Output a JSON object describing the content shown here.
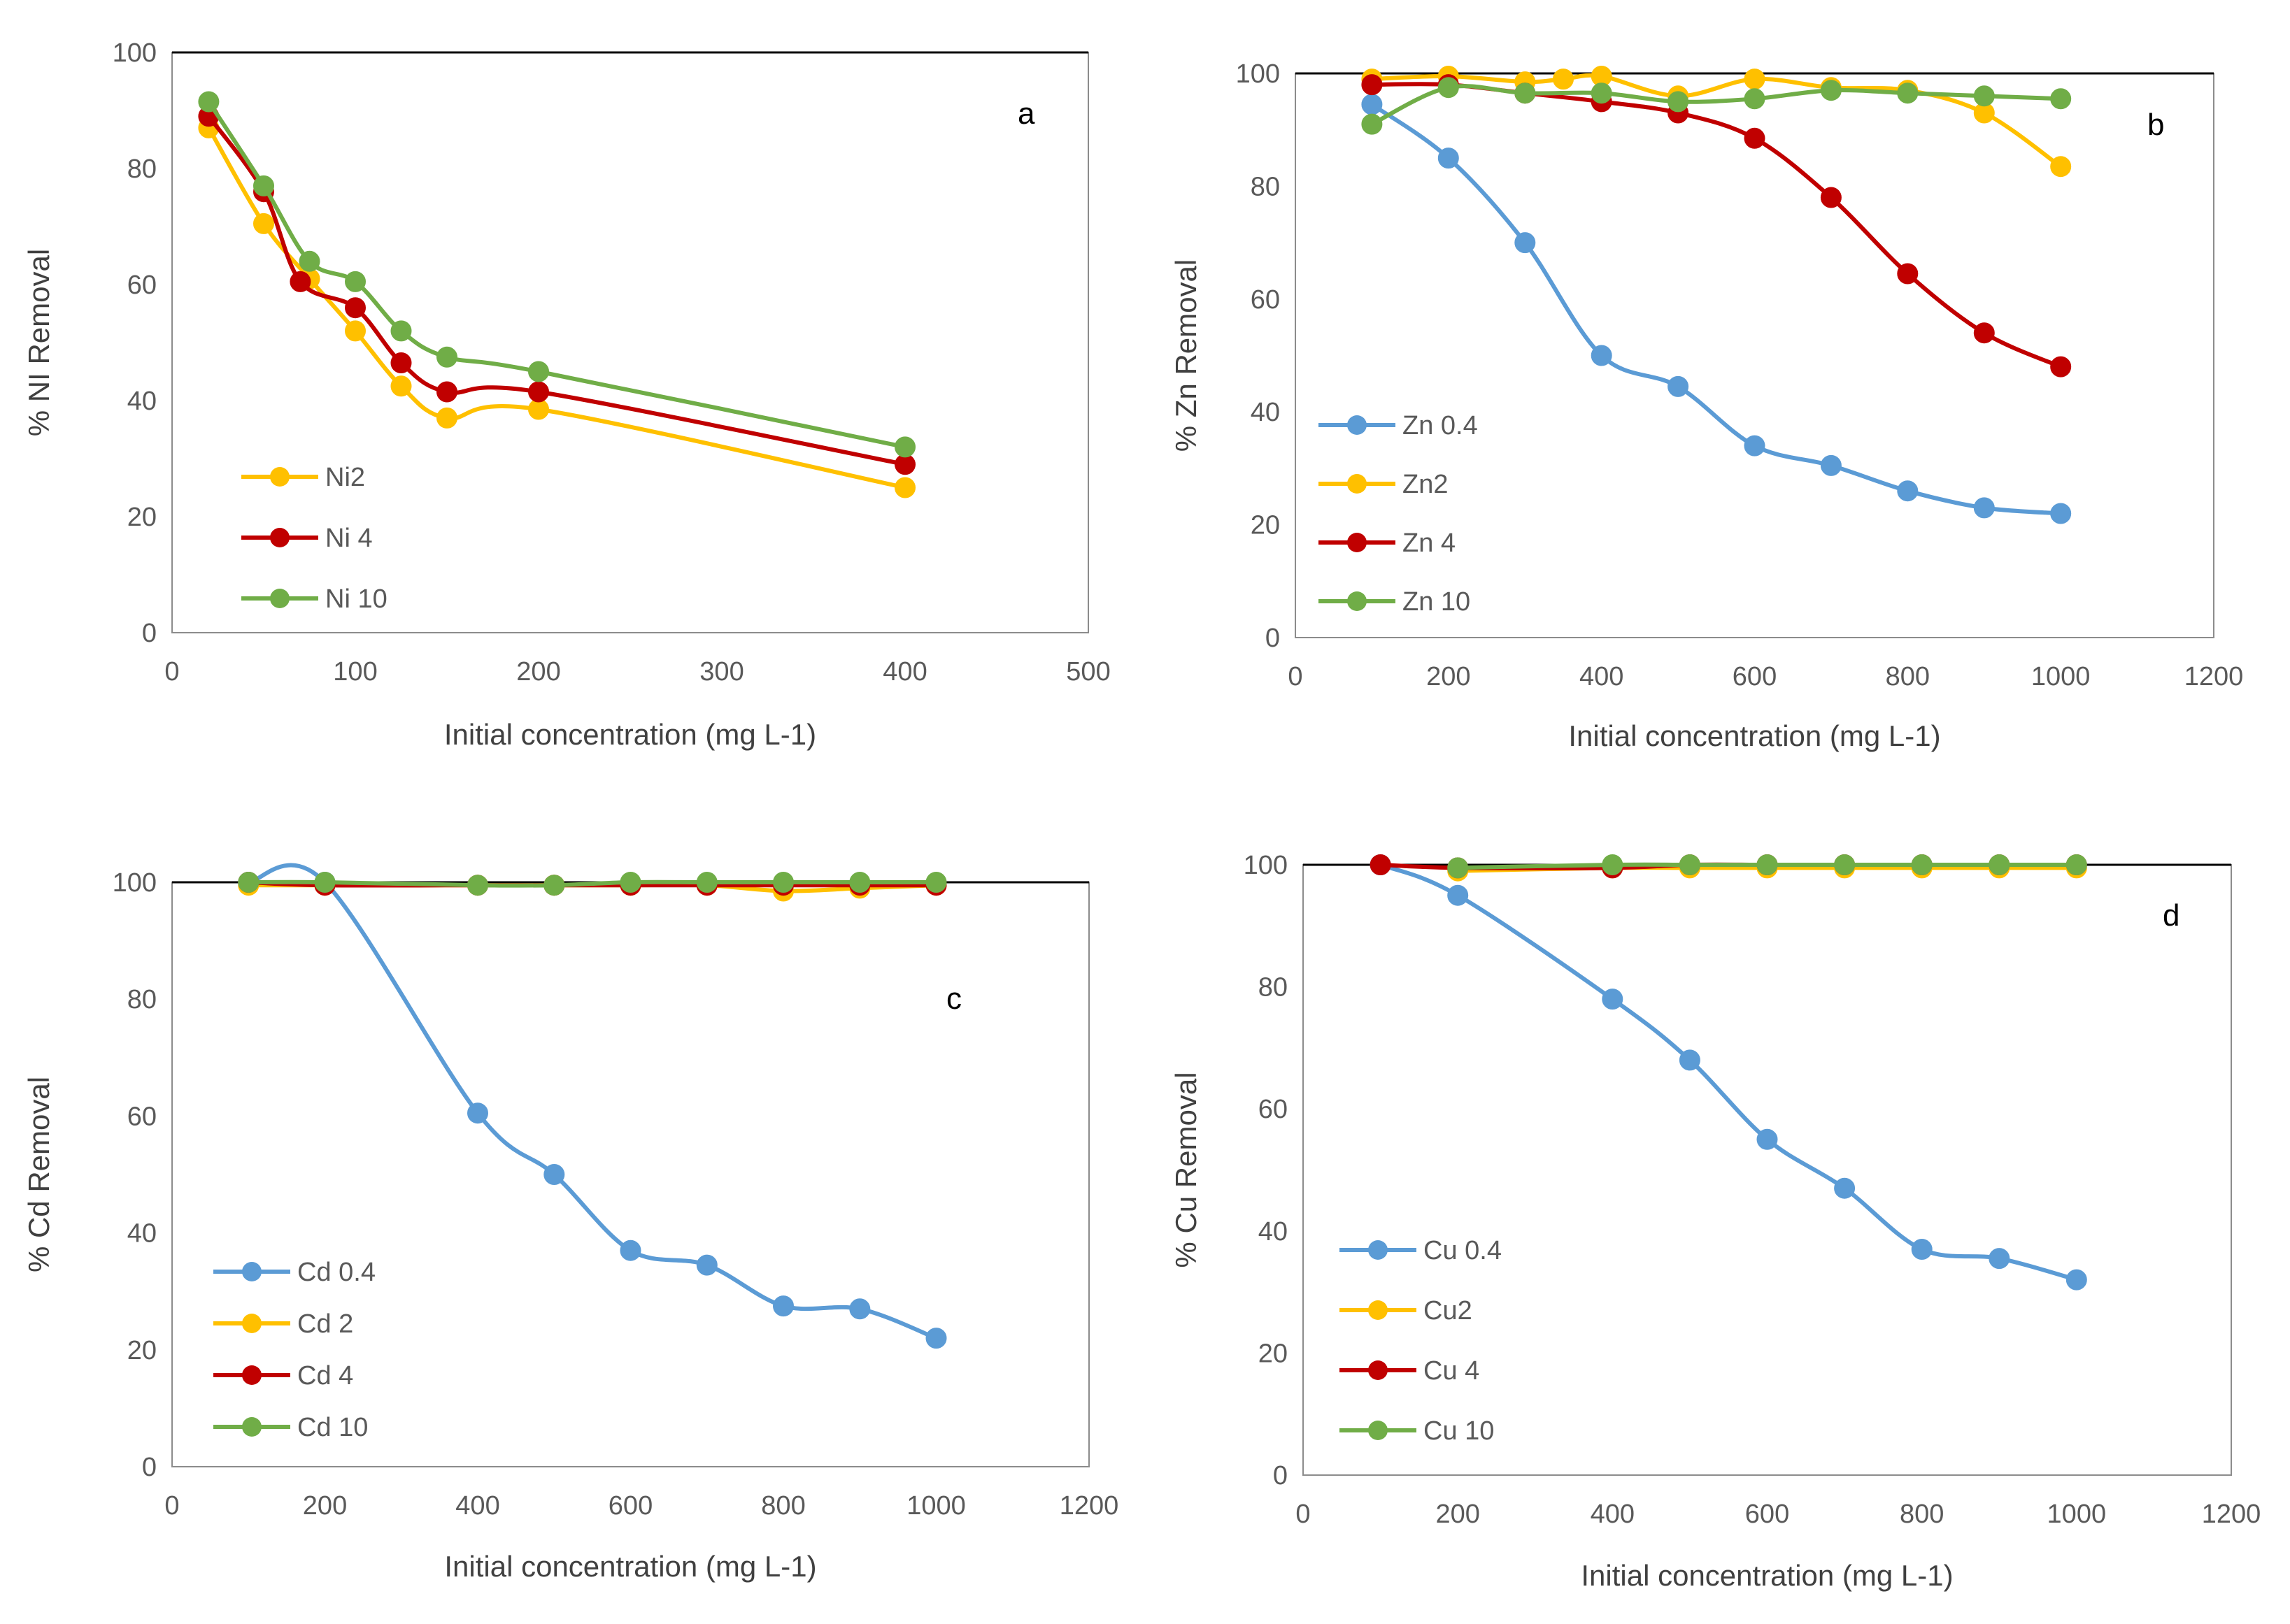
{
  "colors": {
    "blue": "#5B9BD5",
    "yellow": "#FFC000",
    "red": "#C00000",
    "green": "#70AD47",
    "axis": "#000000",
    "text": "#595959"
  },
  "chart_data": [
    {
      "type": "line",
      "panel": "a",
      "label": "a",
      "xlabel": "Initial concentration (mg  L-1)",
      "ylabel": "% NI Removal",
      "xlim": [
        0,
        500
      ],
      "ylim": [
        0,
        100
      ],
      "xticks": [
        0,
        100,
        200,
        300,
        400,
        500
      ],
      "yticks": [
        0,
        20,
        40,
        60,
        80,
        100
      ],
      "legend_position": "bottom-left",
      "series": [
        {
          "name": "Ni2",
          "color": "#FFC000",
          "x": [
            20,
            50,
            75,
            100,
            125,
            150,
            200,
            400
          ],
          "y": [
            87,
            70.5,
            61,
            52,
            42.5,
            37,
            38.5,
            25
          ]
        },
        {
          "name": "Ni 4",
          "color": "#C00000",
          "x": [
            20,
            50,
            70,
            100,
            125,
            150,
            200,
            400
          ],
          "y": [
            89,
            76,
            60.5,
            56,
            46.5,
            41.5,
            41.5,
            29
          ]
        },
        {
          "name": "Ni 10",
          "color": "#70AD47",
          "x": [
            20,
            50,
            75,
            100,
            125,
            150,
            200,
            400
          ],
          "y": [
            91.5,
            77,
            64,
            60.5,
            52,
            47.5,
            45,
            32
          ]
        }
      ]
    },
    {
      "type": "line",
      "panel": "b",
      "label": "b",
      "xlabel": "Initial concentration (mg  L-1)",
      "ylabel": "% Zn Removal",
      "xlim": [
        0,
        1200
      ],
      "ylim": [
        0,
        100
      ],
      "xticks": [
        0,
        200,
        400,
        600,
        800,
        1000,
        1200
      ],
      "yticks": [
        0,
        20,
        40,
        60,
        80,
        100
      ],
      "legend_position": "bottom-left",
      "series": [
        {
          "name": "Zn 0.4",
          "color": "#5B9BD5",
          "x": [
            100,
            200,
            300,
            400,
            500,
            600,
            700,
            800,
            900,
            1000
          ],
          "y": [
            94.5,
            85,
            70,
            50,
            44.5,
            34,
            30.5,
            26,
            23,
            22
          ]
        },
        {
          "name": "Zn2",
          "color": "#FFC000",
          "x": [
            100,
            200,
            300,
            350,
            400,
            500,
            600,
            700,
            800,
            900,
            1000
          ],
          "y": [
            99,
            99.5,
            98.5,
            99,
            99.5,
            96,
            99,
            97.5,
            97,
            93,
            83.5
          ]
        },
        {
          "name": "Zn 4",
          "color": "#C00000",
          "x": [
            100,
            200,
            300,
            400,
            500,
            600,
            700,
            800,
            900,
            1000
          ],
          "y": [
            98,
            98,
            96.5,
            95,
            93,
            88.5,
            78,
            64.5,
            54,
            48
          ]
        },
        {
          "name": "Zn 10",
          "color": "#70AD47",
          "x": [
            100,
            200,
            300,
            400,
            500,
            600,
            700,
            800,
            900,
            1000
          ],
          "y": [
            91,
            97.5,
            96.5,
            96.5,
            95,
            95.5,
            97,
            96.5,
            96,
            95.5
          ]
        }
      ]
    },
    {
      "type": "line",
      "panel": "c",
      "label": "c",
      "xlabel": "Initial concentration (mg  L-1)",
      "ylabel": "% Cd Removal",
      "xlim": [
        0,
        1200
      ],
      "ylim": [
        0,
        100
      ],
      "xticks": [
        0,
        200,
        400,
        600,
        800,
        1000,
        1200
      ],
      "yticks": [
        0,
        20,
        40,
        60,
        80,
        100
      ],
      "legend_position": "bottom-left",
      "series": [
        {
          "name": "Cd 0.4",
          "color": "#5B9BD5",
          "x": [
            100,
            200,
            400,
            500,
            600,
            700,
            800,
            900,
            1000
          ],
          "y": [
            100,
            100,
            60.5,
            50,
            37,
            34.5,
            27.5,
            27,
            22
          ]
        },
        {
          "name": "Cd 2",
          "color": "#FFC000",
          "x": [
            100,
            200,
            400,
            500,
            600,
            700,
            800,
            900,
            1000
          ],
          "y": [
            99.5,
            99.5,
            99.5,
            99.5,
            99.5,
            99.5,
            98.5,
            99,
            99.5
          ]
        },
        {
          "name": "Cd 4",
          "color": "#C00000",
          "x": [
            100,
            200,
            400,
            500,
            600,
            700,
            800,
            900,
            1000
          ],
          "y": [
            100,
            99.5,
            99.5,
            99.5,
            99.5,
            99.5,
            99.5,
            99.5,
            99.5
          ]
        },
        {
          "name": "Cd 10",
          "color": "#70AD47",
          "x": [
            100,
            200,
            400,
            500,
            600,
            700,
            800,
            900,
            1000
          ],
          "y": [
            100,
            100,
            99.5,
            99.5,
            100,
            100,
            100,
            100,
            100
          ]
        }
      ]
    },
    {
      "type": "line",
      "panel": "d",
      "label": "d",
      "xlabel": "Initial concentration (mg  L-1)",
      "ylabel": "% Cu Removal",
      "xlim": [
        0,
        1200
      ],
      "ylim": [
        0,
        100
      ],
      "xticks": [
        0,
        200,
        400,
        600,
        800,
        1000,
        1200
      ],
      "yticks": [
        0,
        20,
        40,
        60,
        80,
        100
      ],
      "legend_position": "bottom-left",
      "series": [
        {
          "name": "Cu 0.4",
          "color": "#5B9BD5",
          "x": [
            100,
            200,
            400,
            500,
            600,
            700,
            800,
            900,
            1000
          ],
          "y": [
            100,
            95,
            78,
            68,
            55,
            47,
            37,
            35.5,
            32
          ]
        },
        {
          "name": "Cu2",
          "color": "#FFC000",
          "x": [
            200,
            400,
            500,
            600,
            700,
            800,
            900,
            1000
          ],
          "y": [
            99,
            99.5,
            99.5,
            99.5,
            99.5,
            99.5,
            99.5,
            99.5
          ]
        },
        {
          "name": "Cu 4",
          "color": "#C00000",
          "x": [
            100,
            200,
            400,
            500,
            600,
            700,
            800,
            900,
            1000
          ],
          "y": [
            100,
            99.5,
            99.5,
            100,
            100,
            100,
            100,
            100,
            100
          ]
        },
        {
          "name": "Cu 10",
          "color": "#70AD47",
          "x": [
            200,
            400,
            500,
            600,
            700,
            800,
            900,
            1000
          ],
          "y": [
            99.5,
            100,
            100,
            100,
            100,
            100,
            100,
            100
          ]
        }
      ]
    }
  ]
}
